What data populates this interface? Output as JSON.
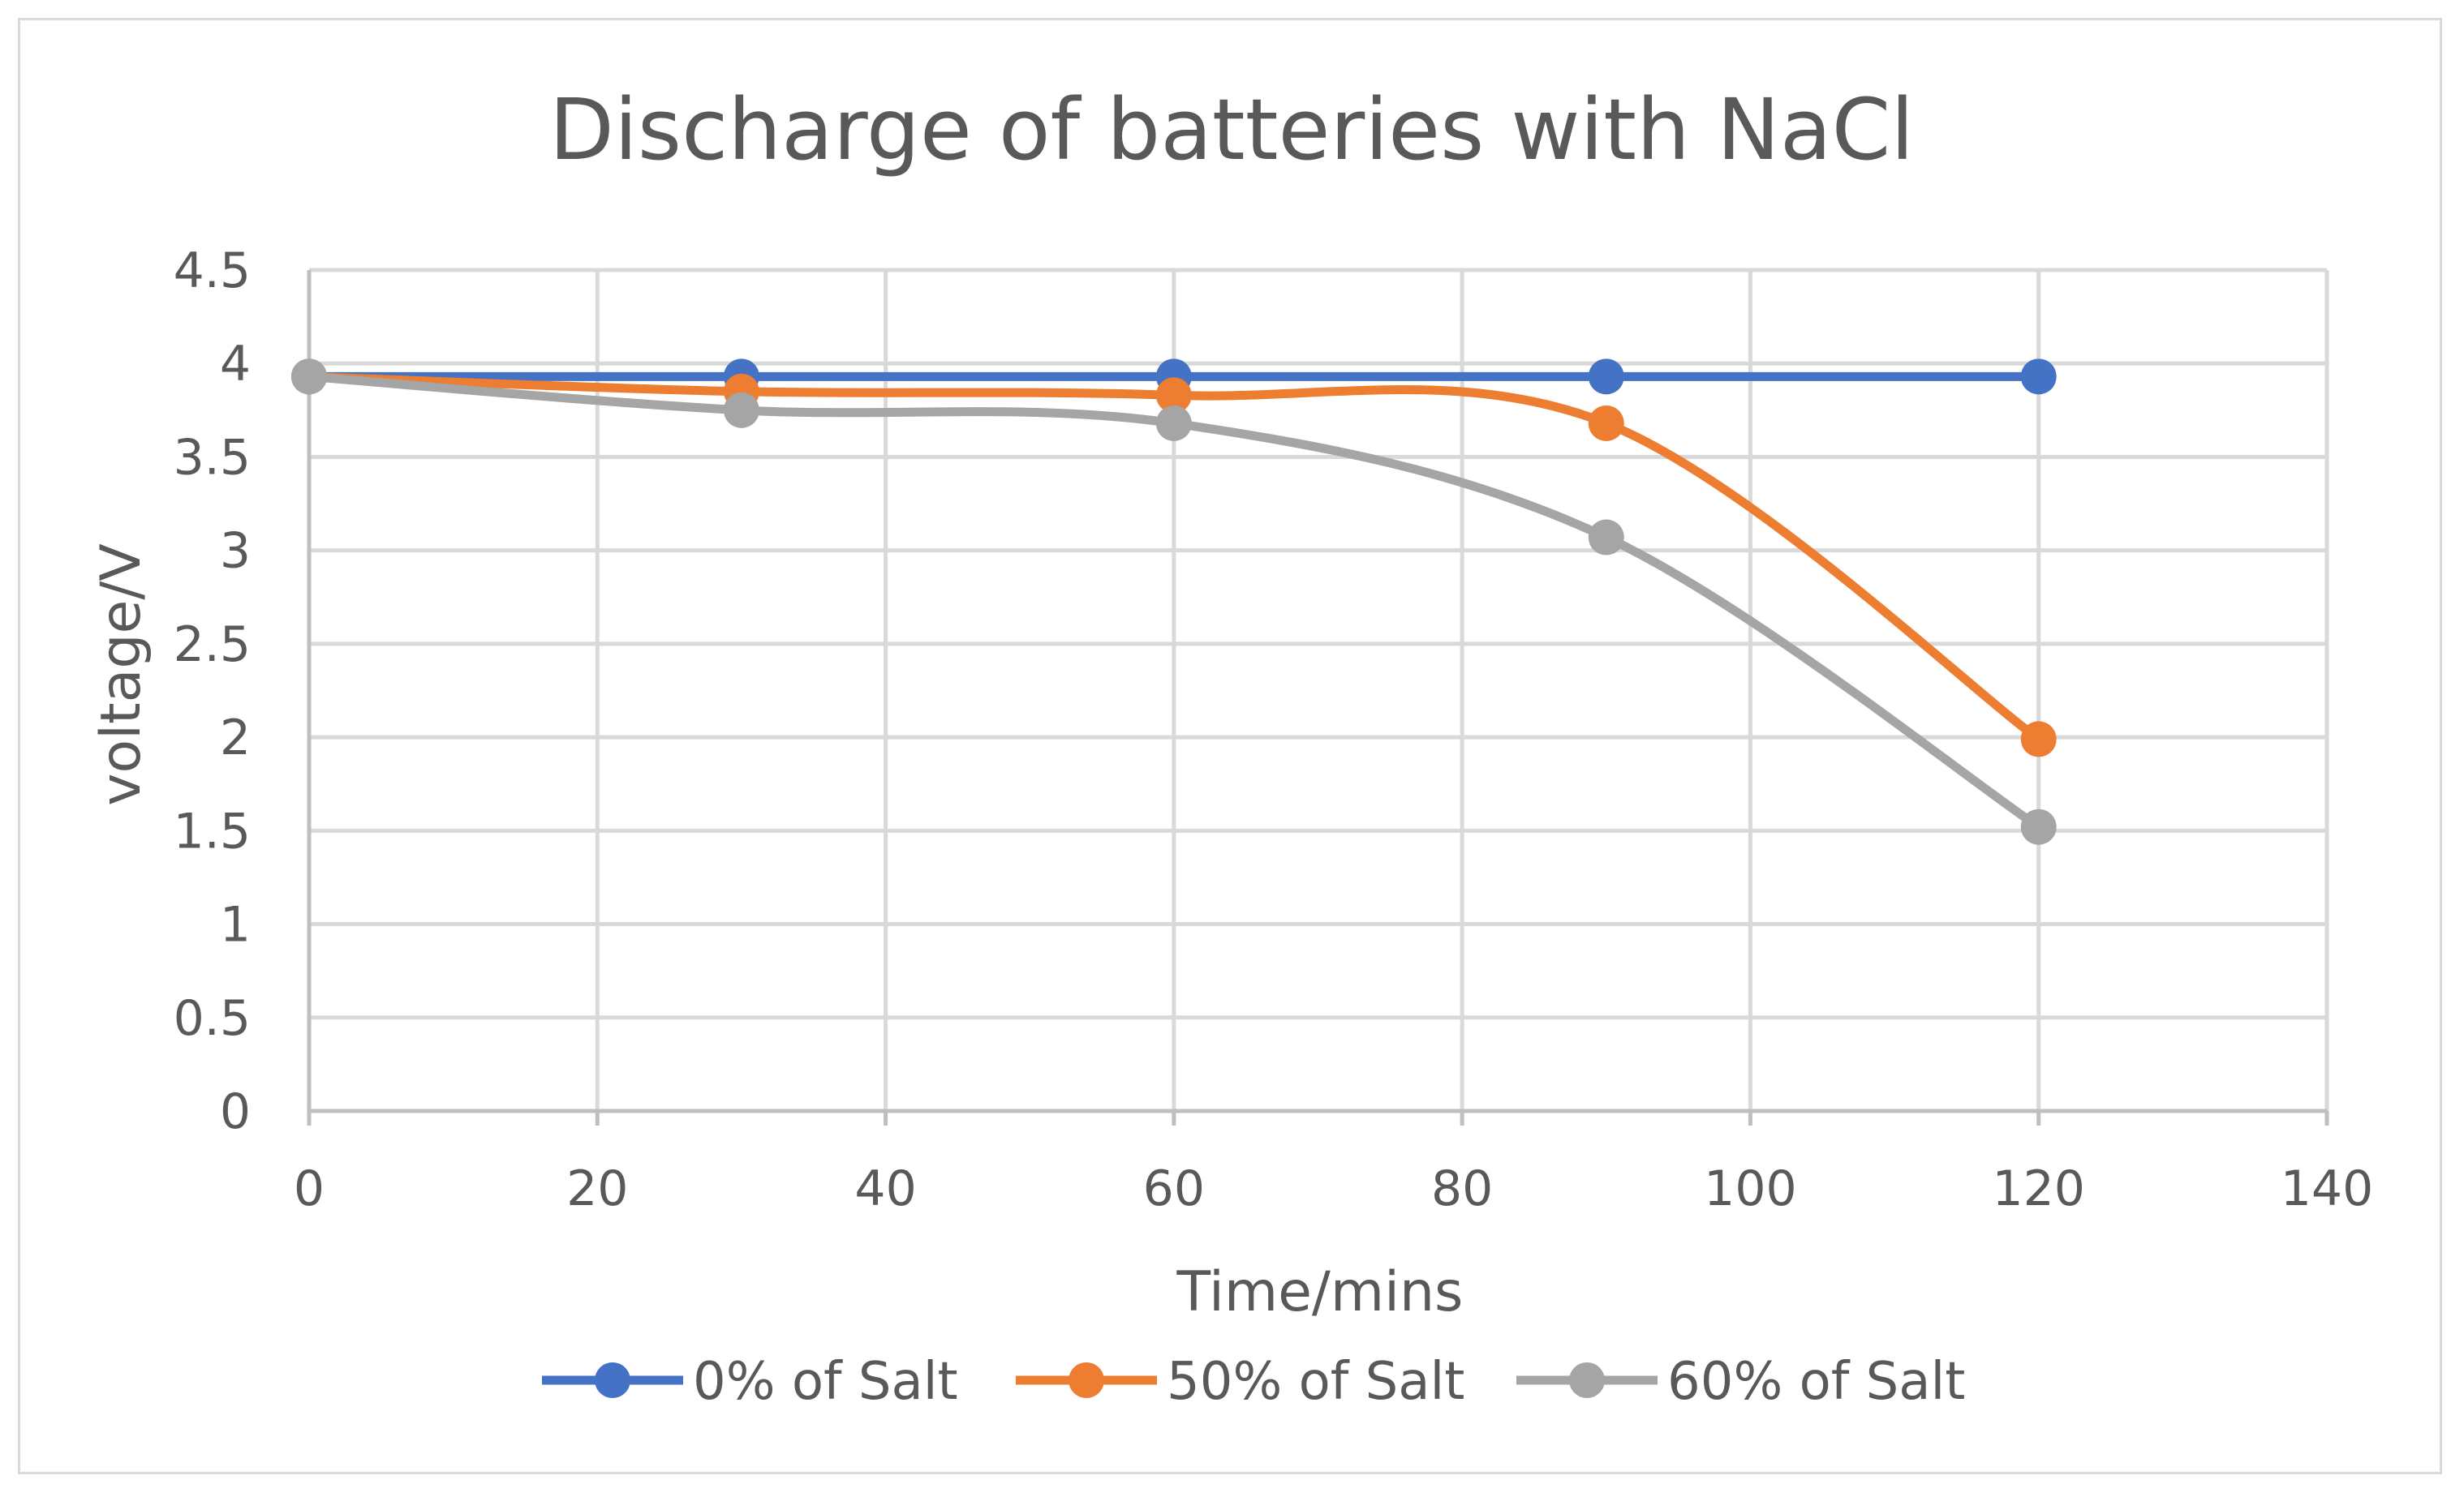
{
  "chart_data": {
    "type": "line",
    "title": "Discharge of batteries with NaCl",
    "xlabel": "Time/mins",
    "ylabel": "voltage/V",
    "xlim": [
      0,
      140
    ],
    "ylim": [
      0,
      4.5
    ],
    "xticks": [
      "0",
      "20",
      "40",
      "60",
      "80",
      "100",
      "120",
      "140"
    ],
    "yticks": [
      "0",
      "0.5",
      "1",
      "1.5",
      "2",
      "2.5",
      "3",
      "3.5",
      "4",
      "4.5"
    ],
    "x": [
      0,
      30,
      60,
      90,
      120
    ],
    "grid": true,
    "legend": "bottom",
    "smooth": true,
    "series": [
      {
        "name": "0% of Salt",
        "color": "#4472C4",
        "values": [
          3.93,
          3.93,
          3.93,
          3.93,
          3.93
        ]
      },
      {
        "name": "50% of Salt",
        "color": "#ED7D31",
        "values": [
          3.93,
          3.85,
          3.83,
          3.68,
          1.99
        ]
      },
      {
        "name": "60% of Salt",
        "color": "#A5A5A5",
        "values": [
          3.93,
          3.75,
          3.68,
          3.07,
          1.52
        ]
      }
    ]
  }
}
